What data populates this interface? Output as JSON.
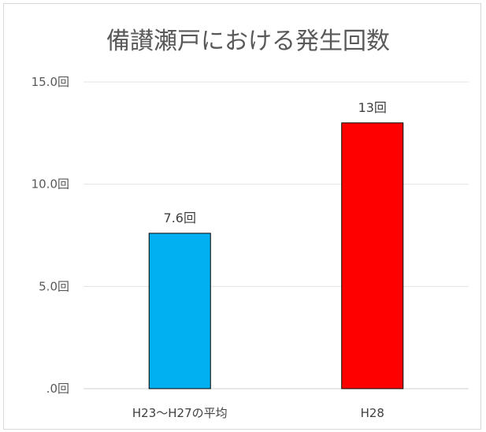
{
  "chart_data": {
    "type": "bar",
    "title": "備讃瀬戸における発生回数",
    "xlabel": "",
    "ylabel": "",
    "categories": [
      "H23～H27の平均",
      "H28"
    ],
    "values": [
      7.6,
      13
    ],
    "data_labels": [
      "7.6回",
      "13回"
    ],
    "colors": [
      "#00B0F0",
      "#FF0000"
    ],
    "ylim": [
      0,
      15
    ],
    "yticks": [
      0,
      5,
      10,
      15
    ],
    "ytick_labels": [
      ".0回",
      "5.0回",
      "10.0回",
      "15.0回"
    ],
    "grid": true,
    "legend": "none"
  }
}
